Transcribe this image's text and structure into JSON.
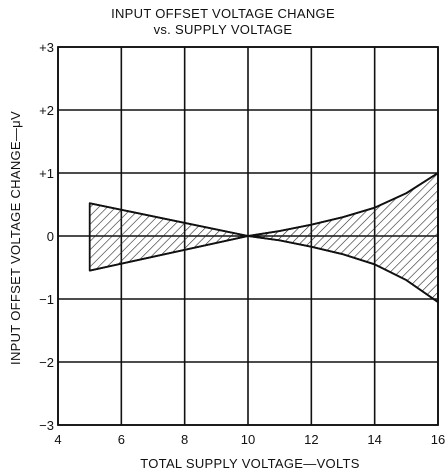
{
  "chart_data": {
    "type": "area",
    "title": "INPUT OFFSET VOLTAGE CHANGE",
    "subtitle": "vs. SUPPLY VOLTAGE",
    "xlabel": "TOTAL SUPPLY VOLTAGE—VOLTS",
    "ylabel": "INPUT OFFSET VOLTAGE CHANGE—μV",
    "xlim": [
      4,
      16
    ],
    "ylim": [
      -3,
      3
    ],
    "x_ticks": [
      4,
      6,
      8,
      10,
      12,
      14,
      16
    ],
    "y_ticks": [
      3,
      2,
      1,
      0,
      -1,
      -2,
      -3
    ],
    "x_tick_labels": [
      "4",
      "6",
      "8",
      "10",
      "12",
      "14",
      "16"
    ],
    "y_tick_labels": [
      "+3",
      "+2",
      "+1",
      "0",
      "−1",
      "−2",
      "−3"
    ],
    "grid": true,
    "fill": "hatched",
    "series": [
      {
        "x": [
          5,
          10,
          11,
          12,
          13,
          14,
          15,
          16
        ],
        "y": [
          0.52,
          0.0,
          0.08,
          0.18,
          0.3,
          0.45,
          0.68,
          1.0
        ]
      },
      {
        "x": [
          5,
          10,
          11,
          12,
          13,
          14,
          15,
          16
        ],
        "y": [
          -0.55,
          0.0,
          -0.07,
          -0.17,
          -0.29,
          -0.45,
          -0.7,
          -1.05
        ]
      }
    ]
  }
}
